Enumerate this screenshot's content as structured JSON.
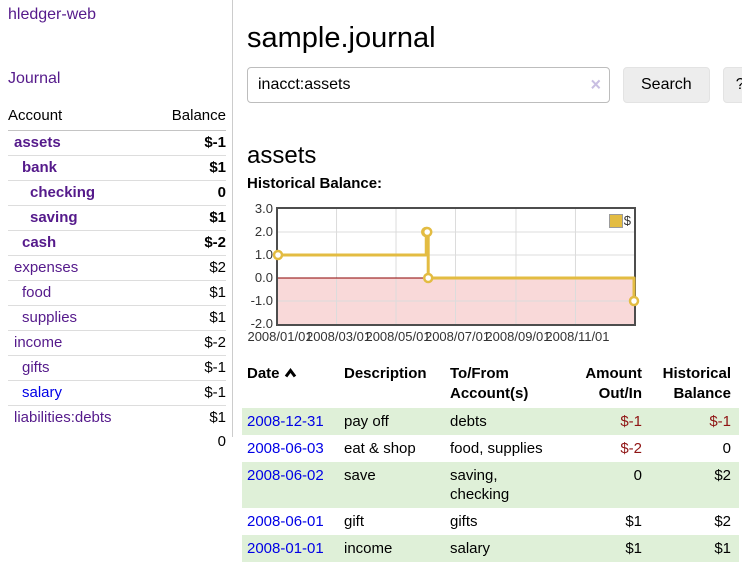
{
  "colors": {
    "accent_purple": "#551a8b",
    "link_blue": "#0000e6",
    "negative_red": "#8f1414",
    "negative_muted_red": "#bc8f8f",
    "row_green": "#dff0d8",
    "chart_line_yellow": "#e3bc42",
    "chart_negative_fill": "#f9d9d9",
    "chart_zero_line": "#8b0000",
    "chart_grid": "#dcdcdc",
    "chart_border": "#4d4d4d"
  },
  "app": {
    "brand": "hledger-web"
  },
  "sidebar": {
    "journal_link": "Journal",
    "accounts": {
      "account_header": "Account",
      "balance_header": "Balance",
      "rows": [
        {
          "name": "assets",
          "indent": 1,
          "emph": true,
          "link": "purple",
          "balance": "$-1",
          "balance_class": "neg"
        },
        {
          "name": "bank",
          "indent": 2,
          "emph": true,
          "link": "purple",
          "balance": "$1",
          "balance_class": ""
        },
        {
          "name": "checking",
          "indent": 3,
          "emph": true,
          "link": "purple",
          "balance": "0",
          "balance_class": ""
        },
        {
          "name": "saving",
          "indent": 3,
          "emph": true,
          "link": "purple",
          "balance": "$1",
          "balance_class": ""
        },
        {
          "name": "cash",
          "indent": 2,
          "emph": true,
          "link": "purple",
          "balance": "$-2",
          "balance_class": "neg"
        },
        {
          "name": "expenses",
          "indent": 1,
          "emph": false,
          "link": "purple",
          "balance": "$2",
          "balance_class": ""
        },
        {
          "name": "food",
          "indent": 2,
          "emph": false,
          "link": "purple",
          "balance": "$1",
          "balance_class": ""
        },
        {
          "name": "supplies",
          "indent": 2,
          "emph": false,
          "link": "purple",
          "balance": "$1",
          "balance_class": ""
        },
        {
          "name": "income",
          "indent": 1,
          "emph": false,
          "link": "purple",
          "balance": "$-2",
          "balance_class": "neg-muted"
        },
        {
          "name": "gifts",
          "indent": 2,
          "emph": false,
          "link": "purple",
          "balance": "$-1",
          "balance_class": "neg-muted"
        },
        {
          "name": "salary",
          "indent": 2,
          "emph": false,
          "link": "blue",
          "balance": "$-1",
          "balance_class": "neg-muted"
        },
        {
          "name": "liabilities:debts",
          "indent": 1,
          "emph": false,
          "link": "purple",
          "balance": "$1",
          "balance_class": ""
        }
      ],
      "total": "0"
    }
  },
  "main": {
    "title": "sample.journal",
    "search": {
      "value": "inacct:assets",
      "clear_icon": "×",
      "search_button": "Search",
      "help_button": "?"
    },
    "account_heading": "assets",
    "section_label": "Historical Balance:",
    "register": {
      "headers": {
        "date": "Date",
        "description": "Description",
        "tofrom_line1": "To/From",
        "tofrom_line2": "Account(s)",
        "amount_line1": "Amount",
        "amount_line2": "Out/In",
        "balance_line1": "Historical",
        "balance_line2": "Balance"
      },
      "rows": [
        {
          "date": "2008-12-31",
          "description": "pay off",
          "accounts": [
            "debts"
          ],
          "amount": "$-1",
          "amount_class": "neg",
          "balance": "$-1",
          "balance_class": "neg"
        },
        {
          "date": "2008-06-03",
          "description": "eat & shop",
          "accounts": [
            "food, supplies"
          ],
          "amount": "$-2",
          "amount_class": "neg",
          "balance": "0",
          "balance_class": ""
        },
        {
          "date": "2008-06-02",
          "description": "save",
          "accounts": [
            "saving,",
            "checking"
          ],
          "amount": "0",
          "amount_class": "",
          "balance": "$2",
          "balance_class": ""
        },
        {
          "date": "2008-06-01",
          "description": "gift",
          "accounts": [
            "gifts"
          ],
          "amount": "$1",
          "amount_class": "",
          "balance": "$2",
          "balance_class": ""
        },
        {
          "date": "2008-01-01",
          "description": "income",
          "accounts": [
            "salary"
          ],
          "amount": "$1",
          "amount_class": "",
          "balance": "$1",
          "balance_class": ""
        }
      ]
    }
  },
  "chart_data": {
    "type": "line",
    "title": "Historical Balance:",
    "step": "after",
    "x_range": [
      "2008-01-01",
      "2008-12-31"
    ],
    "ylim": [
      -2,
      3
    ],
    "grid": true,
    "negative_region_shaded": true,
    "legend_position": "top-right",
    "y_ticks": [
      {
        "value": 3,
        "label": "3.0"
      },
      {
        "value": 2,
        "label": "2.0"
      },
      {
        "value": 1,
        "label": "1.0"
      },
      {
        "value": 0,
        "label": "0.0"
      },
      {
        "value": -1,
        "label": "-1.0"
      },
      {
        "value": -2,
        "label": "-2.0"
      }
    ],
    "x_ticks": [
      {
        "date": "2008-01-01",
        "label": "2008/01/01"
      },
      {
        "date": "2008-03-01",
        "label": "2008/03/01"
      },
      {
        "date": "2008-05-01",
        "label": "2008/05/01"
      },
      {
        "date": "2008-07-01",
        "label": "2008/07/01"
      },
      {
        "date": "2008-09-01",
        "label": "2008/09/01"
      },
      {
        "date": "2008-11-01",
        "label": "2008/11/01"
      }
    ],
    "series": [
      {
        "name": "$",
        "points": [
          {
            "date": "2008-01-01",
            "value": 1
          },
          {
            "date": "2008-06-01",
            "value": 2
          },
          {
            "date": "2008-06-02",
            "value": 2
          },
          {
            "date": "2008-06-03",
            "value": 0
          },
          {
            "date": "2008-12-31",
            "value": -1
          }
        ]
      }
    ]
  }
}
